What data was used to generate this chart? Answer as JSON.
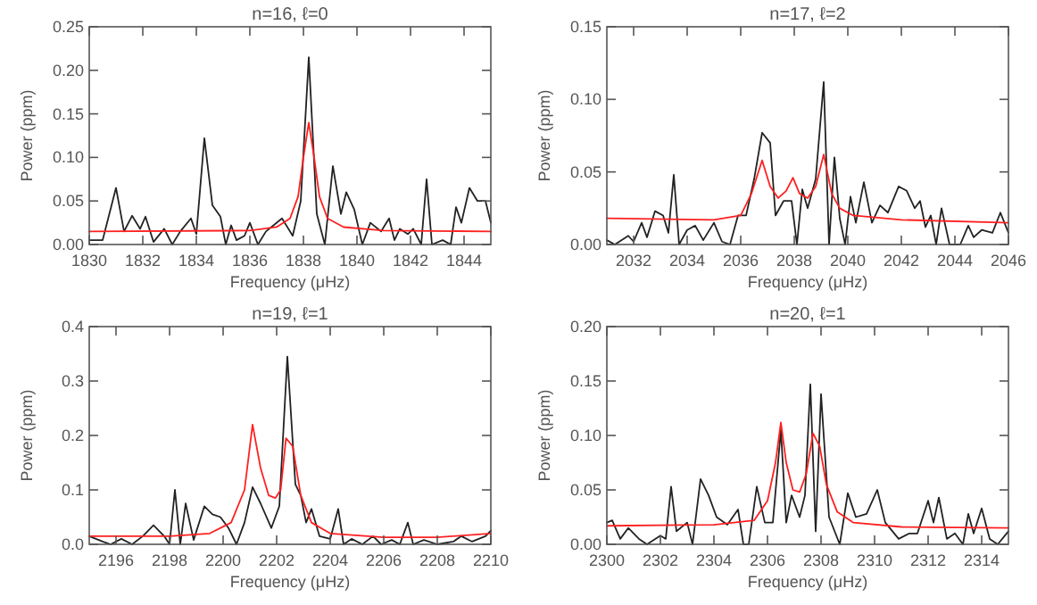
{
  "chart_data": [
    {
      "type": "line",
      "title": "n=16, ℓ=0",
      "xlabel": "Frequency (μHz)",
      "ylabel": "Power (ppm)",
      "xlim": [
        1830,
        1845
      ],
      "xticks": [
        1830,
        1832,
        1834,
        1836,
        1838,
        1840,
        1842,
        1844
      ],
      "ylim": [
        0,
        0.25
      ],
      "yticks": [
        {
          "value": 0,
          "label": "0.00"
        },
        0.05,
        {
          "value": 0.1,
          "label": "0.10"
        },
        0.15,
        {
          "value": 0.2,
          "label": "0.20"
        },
        0.25
      ],
      "grid": false,
      "marker": "none",
      "line_style": "solid",
      "series": [
        {
          "color": "#222222",
          "x": [
            1830,
            1830.5,
            1831,
            1831.3,
            1831.6,
            1831.9,
            1832.1,
            1832.4,
            1832.8,
            1833.1,
            1833.4,
            1833.8,
            1834,
            1834.3,
            1834.6,
            1834.9,
            1835.1,
            1835.3,
            1835.5,
            1835.8,
            1836,
            1836.3,
            1836.6,
            1837.2,
            1837.6,
            1837.9,
            1838.2,
            1838.5,
            1838.8,
            1839.1,
            1839.4,
            1839.6,
            1839.9,
            1840.2,
            1840.5,
            1840.9,
            1841.2,
            1841.4,
            1841.6,
            1841.9,
            1842.1,
            1842.4,
            1842.6,
            1842.8,
            1843.2,
            1843.5,
            1843.7,
            1843.9,
            1844.2,
            1844.5,
            1844.8,
            1845
          ],
          "values": [
            0.005,
            0.005,
            0.065,
            0.015,
            0.033,
            0.018,
            0.032,
            0.003,
            0.018,
            0,
            0.015,
            0.03,
            0.012,
            0.122,
            0.045,
            0.032,
            0,
            0.022,
            0.005,
            0.01,
            0.025,
            0,
            0.015,
            0.03,
            0.01,
            0.05,
            0.215,
            0.035,
            0,
            0.09,
            0.035,
            0.06,
            0.04,
            0,
            0.025,
            0.015,
            0.03,
            0.005,
            0.018,
            0.012,
            0.018,
            0,
            0.075,
            0,
            0.005,
            0,
            0.043,
            0.025,
            0.065,
            0.05,
            0.05,
            0.025
          ]
        },
        {
          "color": "#ff2020",
          "x": [
            1830,
            1836,
            1837,
            1837.5,
            1837.8,
            1838,
            1838.2,
            1838.4,
            1838.6,
            1838.9,
            1839.5,
            1841,
            1845
          ],
          "values": [
            0.015,
            0.016,
            0.02,
            0.03,
            0.055,
            0.1,
            0.14,
            0.1,
            0.055,
            0.03,
            0.02,
            0.016,
            0.015
          ]
        }
      ]
    },
    {
      "type": "line",
      "title": "n=17, ℓ=2",
      "xlabel": "Frequency (μHz)",
      "ylabel": "Power (ppm)",
      "xlim": [
        2031,
        2046
      ],
      "xticks": [
        2032,
        2034,
        2036,
        2038,
        2040,
        2042,
        2044,
        2046
      ],
      "ylim": [
        0,
        0.15
      ],
      "yticks": [
        {
          "value": 0,
          "label": "0.00"
        },
        0.05,
        {
          "value": 0.1,
          "label": "0.10"
        },
        0.15
      ],
      "grid": false,
      "marker": "none",
      "line_style": "solid",
      "series": [
        {
          "color": "#222222",
          "x": [
            2031,
            2031.3,
            2031.8,
            2032,
            2032.3,
            2032.5,
            2032.8,
            2033.1,
            2033.3,
            2033.5,
            2033.7,
            2034,
            2034.3,
            2034.6,
            2035,
            2035.3,
            2035.6,
            2035.9,
            2036.2,
            2036.5,
            2036.8,
            2037.1,
            2037.3,
            2037.6,
            2037.9,
            2038.1,
            2038.3,
            2038.5,
            2038.8,
            2039.1,
            2039.3,
            2039.5,
            2039.7,
            2039.9,
            2040.1,
            2040.3,
            2040.6,
            2040.9,
            2041.2,
            2041.5,
            2041.9,
            2042.2,
            2042.5,
            2042.7,
            2042.9,
            2043.1,
            2043.3,
            2043.5,
            2043.8,
            2044.2,
            2044.5,
            2044.7,
            2045,
            2045.4,
            2045.7,
            2046
          ],
          "values": [
            0.003,
            0,
            0.006,
            0.002,
            0.015,
            0.005,
            0.023,
            0.02,
            0.008,
            0.048,
            0,
            0.01,
            0.013,
            0.003,
            0.015,
            0.002,
            0,
            0.02,
            0.02,
            0.045,
            0.077,
            0.07,
            0.02,
            0.03,
            0.03,
            0,
            0.038,
            0.025,
            0.045,
            0.112,
            0,
            0.06,
            0.018,
            0,
            0.033,
            0.015,
            0.043,
            0.015,
            0.027,
            0.022,
            0.04,
            0.037,
            0.025,
            0.03,
            0.012,
            0.02,
            0,
            0.025,
            0,
            0,
            0.013,
            0.005,
            0.01,
            0.008,
            0.022,
            0.008
          ]
        },
        {
          "color": "#ff2020",
          "x": [
            2031,
            2035,
            2036,
            2036.4,
            2036.8,
            2037.1,
            2037.4,
            2037.7,
            2037.95,
            2038.2,
            2038.5,
            2038.8,
            2039.1,
            2039.4,
            2039.7,
            2040.2,
            2042,
            2046
          ],
          "values": [
            0.018,
            0.017,
            0.02,
            0.035,
            0.058,
            0.04,
            0.032,
            0.037,
            0.046,
            0.035,
            0.032,
            0.04,
            0.062,
            0.035,
            0.025,
            0.02,
            0.017,
            0.015
          ]
        }
      ]
    },
    {
      "type": "line",
      "title": "n=19, ℓ=1",
      "xlabel": "Frequency (μHz)",
      "ylabel": "Power (ppm)",
      "xlim": [
        2195,
        2210
      ],
      "xticks": [
        2196,
        2198,
        2200,
        2202,
        2204,
        2206,
        2208,
        2210
      ],
      "ylim": [
        0,
        0.4
      ],
      "yticks": [
        {
          "value": 0,
          "label": "0.0"
        },
        0.1,
        0.2,
        0.3,
        0.4
      ],
      "grid": false,
      "marker": "none",
      "line_style": "solid",
      "series": [
        {
          "color": "#222222",
          "x": [
            2195,
            2195.5,
            2195.8,
            2196.2,
            2196.6,
            2197,
            2197.4,
            2197.8,
            2198,
            2198.2,
            2198.4,
            2198.6,
            2198.9,
            2199.3,
            2199.6,
            2199.9,
            2200.2,
            2200.5,
            2200.8,
            2201.1,
            2201.4,
            2201.8,
            2202.1,
            2202.4,
            2202.7,
            2202.9,
            2203.1,
            2203.3,
            2203.6,
            2204,
            2204.3,
            2204.5,
            2204.8,
            2205.2,
            2205.6,
            2205.9,
            2206.3,
            2206.6,
            2206.9,
            2207.1,
            2207.5,
            2208,
            2208.6,
            2208.9,
            2209.3,
            2209.8,
            2210
          ],
          "values": [
            0.015,
            0.005,
            0,
            0.01,
            0,
            0.015,
            0.035,
            0.015,
            0,
            0.1,
            0,
            0.075,
            0.008,
            0.07,
            0.055,
            0.05,
            0.03,
            0,
            0.04,
            0.105,
            0.075,
            0.03,
            0.07,
            0.345,
            0.11,
            0.09,
            0.04,
            0.065,
            0.015,
            0.01,
            0.065,
            0,
            0.01,
            0,
            0.015,
            0,
            0.008,
            0,
            0.04,
            0,
            0.008,
            0,
            0.005,
            0.015,
            0.005,
            0.015,
            0.025
          ]
        },
        {
          "color": "#ff2020",
          "x": [
            2195,
            2198,
            2199.5,
            2200.3,
            2200.8,
            2201.1,
            2201.4,
            2201.7,
            2201.95,
            2202.15,
            2202.35,
            2202.6,
            2202.9,
            2203.3,
            2204,
            2206,
            2208,
            2210
          ],
          "values": [
            0.015,
            0.015,
            0.02,
            0.04,
            0.1,
            0.22,
            0.14,
            0.09,
            0.085,
            0.1,
            0.195,
            0.18,
            0.09,
            0.04,
            0.02,
            0.013,
            0.013,
            0.02
          ]
        }
      ]
    },
    {
      "type": "line",
      "title": "n=20, ℓ=1",
      "xlabel": "Frequency (μHz)",
      "ylabel": "Power (ppm)",
      "xlim": [
        2300,
        2315
      ],
      "xticks": [
        2300,
        2302,
        2304,
        2306,
        2308,
        2310,
        2312,
        2314
      ],
      "ylim": [
        0,
        0.2
      ],
      "yticks": [
        {
          "value": 0,
          "label": "0.00"
        },
        0.05,
        {
          "value": 0.1,
          "label": "0.10"
        },
        0.15,
        {
          "value": 0.2,
          "label": "0.20"
        }
      ],
      "grid": false,
      "marker": "none",
      "line_style": "solid",
      "series": [
        {
          "color": "#222222",
          "x": [
            2300,
            2300.2,
            2300.5,
            2300.8,
            2301.2,
            2301.5,
            2302,
            2302.2,
            2302.4,
            2302.6,
            2303,
            2303.2,
            2303.5,
            2303.8,
            2304.1,
            2304.5,
            2304.9,
            2305.1,
            2305.3,
            2305.6,
            2305.9,
            2306.2,
            2306.5,
            2306.7,
            2306.9,
            2307.2,
            2307.4,
            2307.6,
            2307.8,
            2308,
            2308.3,
            2308.7,
            2309,
            2309.3,
            2309.7,
            2310.1,
            2310.4,
            2310.9,
            2311.3,
            2311.6,
            2312,
            2312.2,
            2312.4,
            2312.7,
            2313,
            2313.3,
            2313.5,
            2313.7,
            2314,
            2314.3,
            2314.6,
            2315
          ],
          "values": [
            0.02,
            0.022,
            0.005,
            0.015,
            0.005,
            0,
            0.008,
            0.005,
            0.053,
            0.012,
            0.02,
            0,
            0.06,
            0.045,
            0.025,
            0.018,
            0.032,
            0,
            0,
            0.053,
            0.02,
            0.02,
            0.105,
            0.02,
            0.045,
            0.025,
            0.045,
            0.147,
            0.012,
            0.138,
            0.025,
            0,
            0.047,
            0.025,
            0.028,
            0.05,
            0.02,
            0.005,
            0.01,
            0.01,
            0.04,
            0.02,
            0.043,
            0.005,
            0.01,
            0,
            0.028,
            0.01,
            0.033,
            0.005,
            0,
            0.012
          ]
        },
        {
          "color": "#ff2020",
          "x": [
            2300,
            2304,
            2305.5,
            2306,
            2306.3,
            2306.5,
            2306.7,
            2306.95,
            2307.2,
            2307.45,
            2307.7,
            2307.95,
            2308.2,
            2308.6,
            2309.2,
            2311,
            2315
          ],
          "values": [
            0.017,
            0.018,
            0.022,
            0.04,
            0.075,
            0.112,
            0.075,
            0.05,
            0.048,
            0.065,
            0.102,
            0.09,
            0.055,
            0.03,
            0.02,
            0.016,
            0.015
          ]
        }
      ]
    }
  ]
}
